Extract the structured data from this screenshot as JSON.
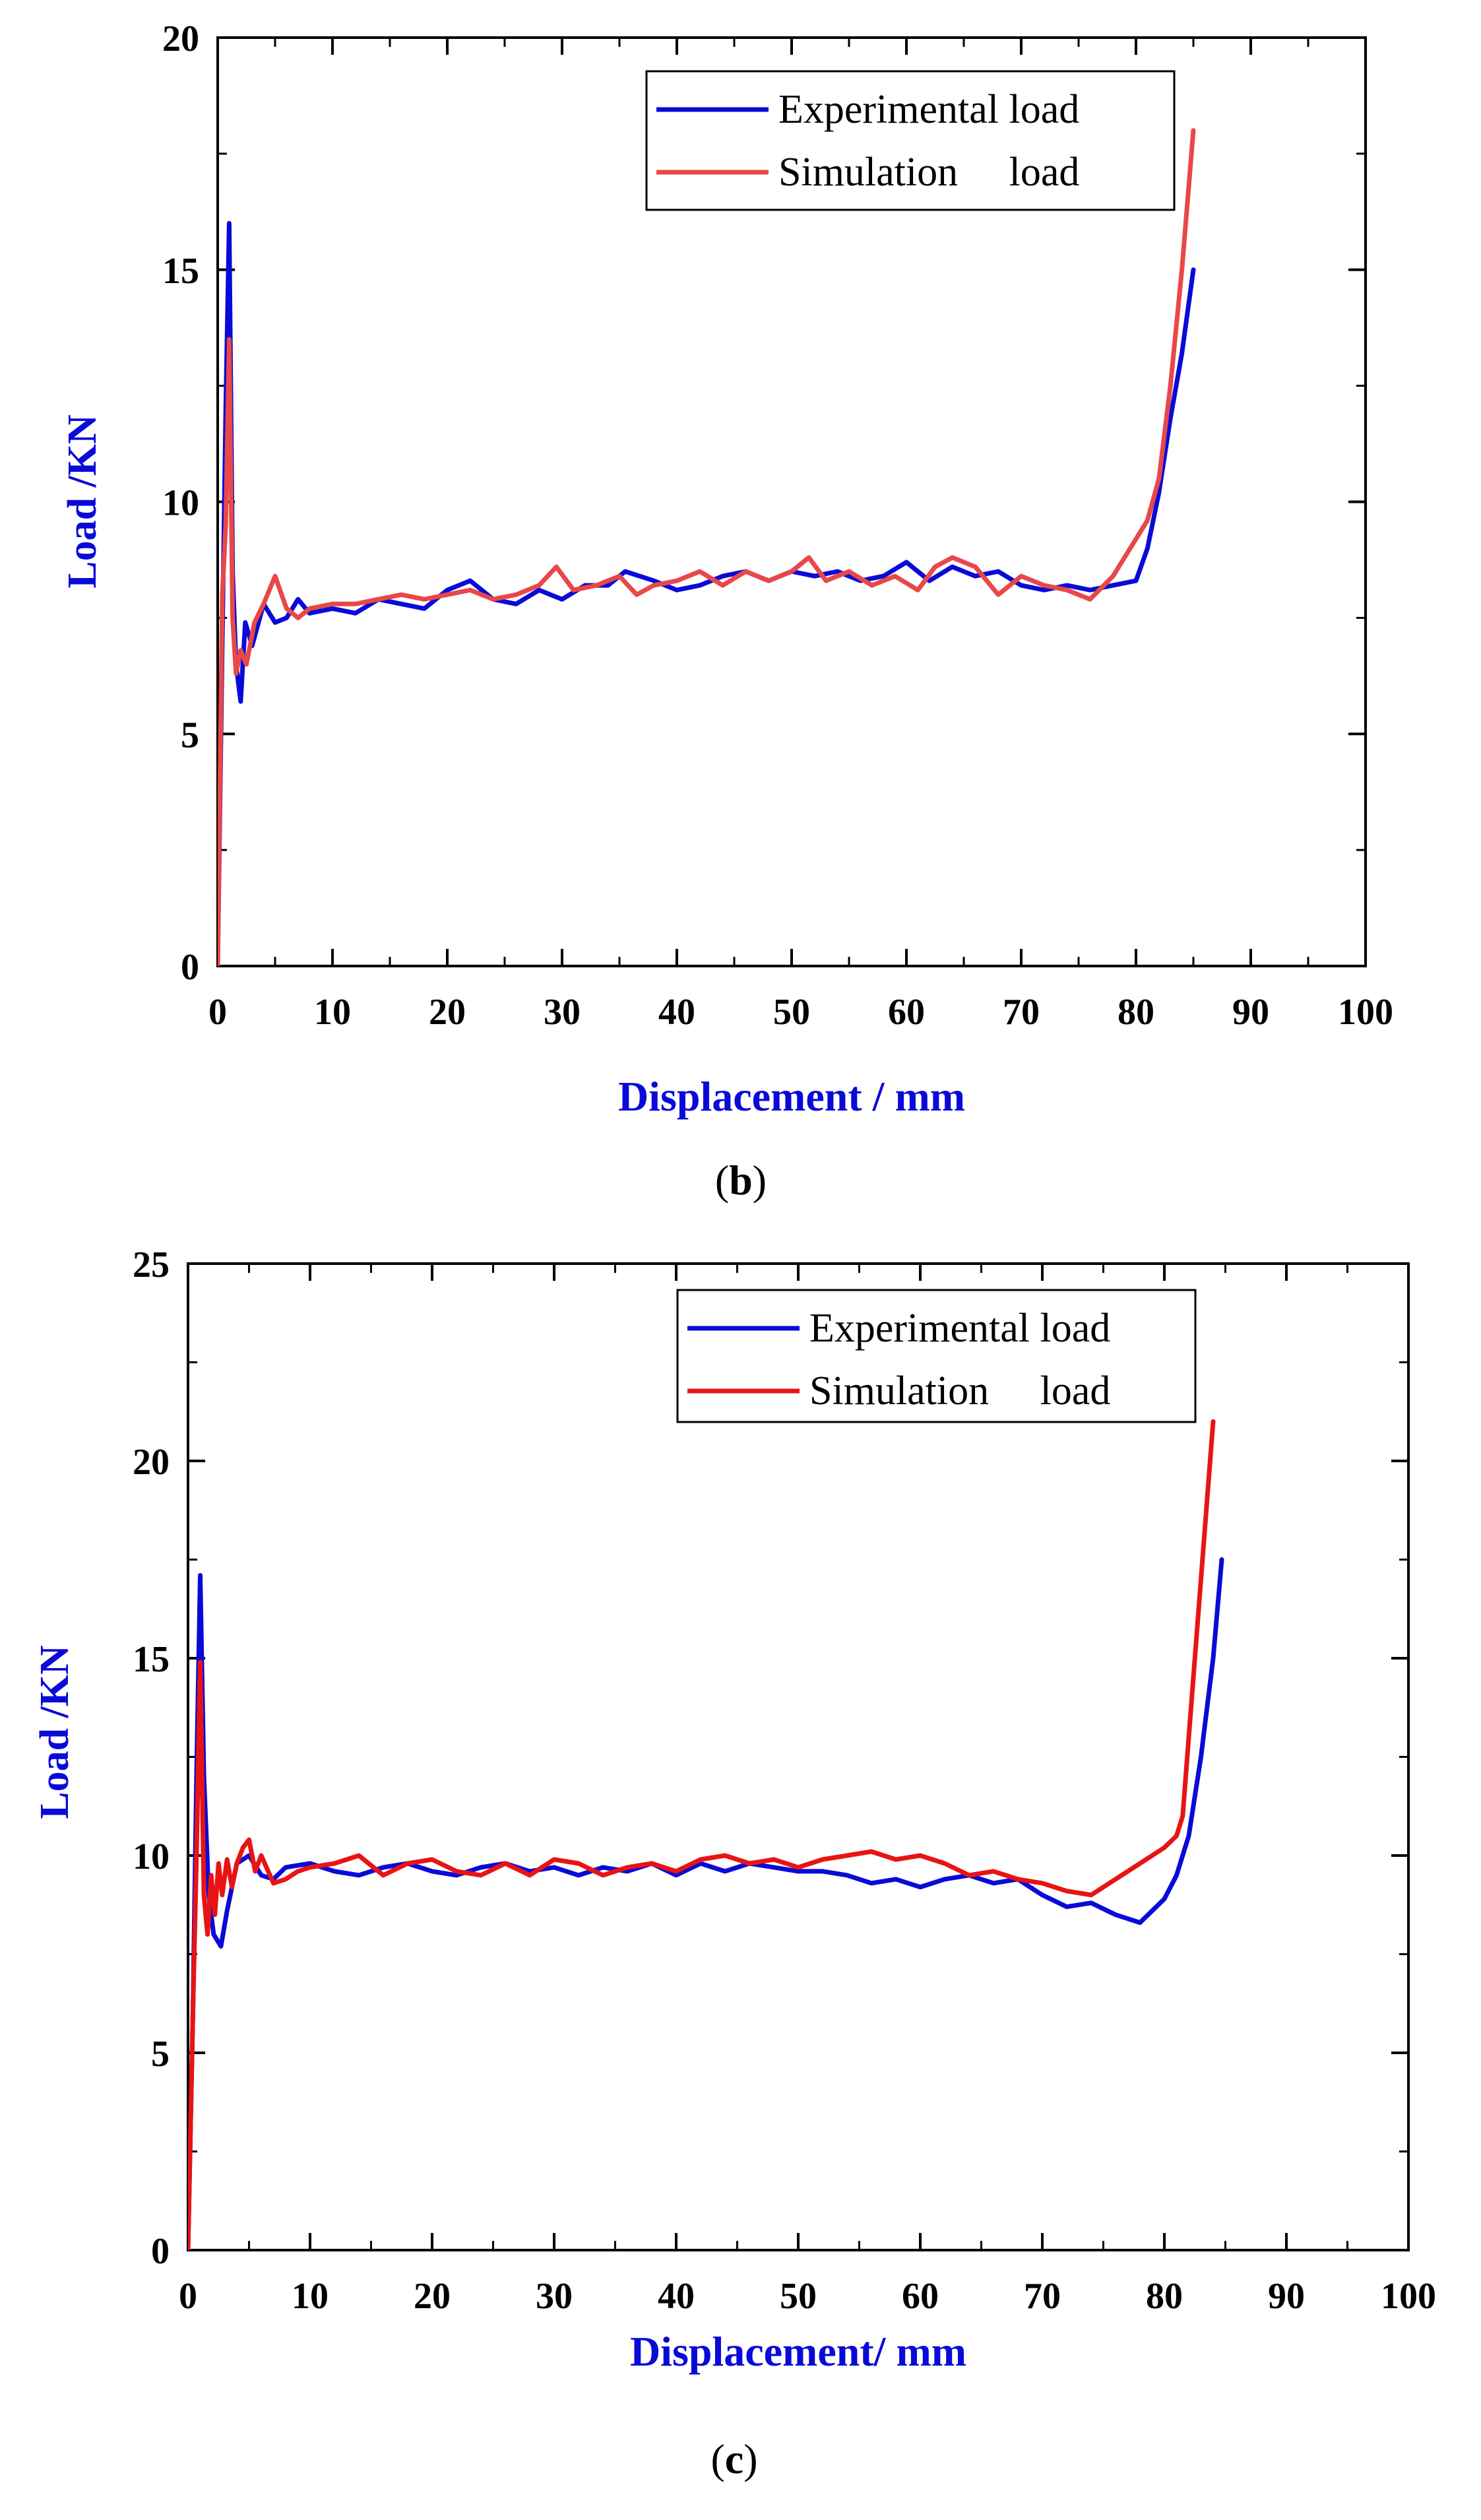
{
  "chart_data": [
    {
      "type": "line",
      "panel_label": "b",
      "xlabel": "Displacement / mm",
      "ylabel": "Load /KN",
      "xlim": [
        0,
        100
      ],
      "ylim": [
        0,
        20
      ],
      "xticks": [
        0,
        10,
        20,
        30,
        40,
        50,
        60,
        70,
        80,
        90,
        100
      ],
      "yticks": [
        0,
        5,
        10,
        15,
        20
      ],
      "legend_position": "top-right",
      "series": [
        {
          "name": "Experimental load",
          "color": "#0a0ad8",
          "x": [
            0,
            0.4,
            0.7,
            1.0,
            1.3,
            1.6,
            2.0,
            2.4,
            3.0,
            4.0,
            5.0,
            6.0,
            7.0,
            8.0,
            10,
            12,
            14,
            16,
            18,
            20,
            22,
            24,
            26,
            28,
            30,
            32,
            34,
            35.5,
            38,
            40,
            42,
            44,
            46,
            48,
            50,
            52,
            54,
            56,
            58,
            60,
            62,
            64,
            66,
            68,
            70,
            72,
            74,
            76,
            78,
            80,
            81,
            82,
            83,
            84,
            85
          ],
          "y": [
            0,
            7.0,
            12.0,
            16.0,
            8.5,
            6.5,
            5.7,
            7.4,
            6.9,
            7.8,
            7.4,
            7.5,
            7.9,
            7.6,
            7.7,
            7.6,
            7.9,
            7.8,
            7.7,
            8.1,
            8.3,
            7.9,
            7.8,
            8.1,
            7.9,
            8.2,
            8.2,
            8.5,
            8.3,
            8.1,
            8.2,
            8.4,
            8.5,
            8.3,
            8.5,
            8.4,
            8.5,
            8.3,
            8.4,
            8.7,
            8.3,
            8.6,
            8.4,
            8.5,
            8.2,
            8.1,
            8.2,
            8.1,
            8.2,
            8.3,
            9.0,
            10.2,
            11.8,
            13.2,
            15.0
          ]
        },
        {
          "name": "Simulation     load",
          "color": "#e84848",
          "x": [
            0,
            0.4,
            0.7,
            1.0,
            1.3,
            1.6,
            2.0,
            2.5,
            3.2,
            4.0,
            5.0,
            6.0,
            7.0,
            8.0,
            10,
            12,
            14,
            16,
            18,
            20,
            22,
            24,
            26,
            28,
            29.5,
            31,
            33,
            35,
            36.5,
            38,
            40,
            42,
            44,
            46,
            48,
            50,
            51.5,
            53,
            55,
            57,
            59,
            61,
            62.5,
            64,
            66,
            68,
            70,
            72,
            74,
            76,
            78,
            80,
            81,
            82,
            83,
            84,
            85
          ],
          "y": [
            0,
            8.0,
            9.5,
            13.5,
            7.5,
            6.3,
            6.8,
            6.5,
            7.4,
            7.8,
            8.4,
            7.7,
            7.5,
            7.7,
            7.8,
            7.8,
            7.9,
            8.0,
            7.9,
            8.0,
            8.1,
            7.9,
            8.0,
            8.2,
            8.6,
            8.1,
            8.2,
            8.4,
            8.0,
            8.2,
            8.3,
            8.5,
            8.2,
            8.5,
            8.3,
            8.5,
            8.8,
            8.3,
            8.5,
            8.2,
            8.4,
            8.1,
            8.6,
            8.8,
            8.6,
            8.0,
            8.4,
            8.2,
            8.1,
            7.9,
            8.4,
            9.2,
            9.6,
            10.5,
            12.5,
            15.0,
            18.0
          ]
        }
      ]
    },
    {
      "type": "line",
      "panel_label": "c",
      "xlabel": "Displacement/ mm",
      "ylabel": "Load /KN",
      "xlim": [
        0,
        100
      ],
      "ylim": [
        0,
        25
      ],
      "xticks": [
        0,
        10,
        20,
        30,
        40,
        50,
        60,
        70,
        80,
        90,
        100
      ],
      "yticks": [
        0,
        5,
        10,
        15,
        20,
        25
      ],
      "legend_position": "top-right",
      "series": [
        {
          "name": "Experimental load",
          "color": "#0a0ad8",
          "x": [
            0,
            0.4,
            0.7,
            1.0,
            1.3,
            1.7,
            2.1,
            2.7,
            3.2,
            4.0,
            5.0,
            6.0,
            7.0,
            8.0,
            10,
            12,
            14,
            16,
            18,
            20,
            22,
            24,
            26,
            28,
            30,
            32,
            34,
            36,
            38,
            40,
            42,
            44,
            46,
            48,
            50,
            52,
            54,
            56,
            58,
            60,
            62,
            64,
            66,
            68,
            70,
            72,
            74,
            76,
            77,
            78,
            79,
            80,
            81,
            82,
            83,
            84,
            84.7
          ],
          "y": [
            0,
            6.0,
            12.0,
            17.1,
            12.0,
            9.0,
            8.0,
            7.7,
            8.6,
            9.8,
            10.0,
            9.5,
            9.4,
            9.7,
            9.8,
            9.6,
            9.5,
            9.7,
            9.8,
            9.6,
            9.5,
            9.7,
            9.8,
            9.6,
            9.7,
            9.5,
            9.7,
            9.6,
            9.8,
            9.5,
            9.8,
            9.6,
            9.8,
            9.7,
            9.6,
            9.6,
            9.5,
            9.3,
            9.4,
            9.2,
            9.4,
            9.5,
            9.3,
            9.4,
            9.0,
            8.7,
            8.8,
            8.5,
            8.4,
            8.3,
            8.6,
            8.9,
            9.5,
            10.5,
            12.5,
            15.0,
            17.5
          ]
        },
        {
          "name": "Simulation     load",
          "color": "#e81414",
          "x": [
            0,
            0.4,
            0.7,
            1.0,
            1.3,
            1.6,
            1.9,
            2.2,
            2.5,
            2.8,
            3.2,
            3.6,
            4.0,
            4.5,
            5.0,
            5.5,
            6.0,
            7.0,
            8.0,
            9.0,
            10,
            12,
            14,
            16,
            18,
            20,
            22,
            24,
            26,
            28,
            30,
            32,
            34,
            36,
            38,
            40,
            42,
            44,
            46,
            48,
            50,
            52,
            54,
            56,
            58,
            60,
            62,
            64,
            66,
            68,
            70,
            72,
            74,
            76,
            78,
            80,
            81,
            81.5,
            82,
            83,
            84
          ],
          "y": [
            0,
            6.0,
            10.0,
            14.9,
            9.0,
            8.0,
            9.5,
            8.5,
            9.8,
            9.0,
            9.9,
            9.2,
            9.8,
            10.2,
            10.4,
            9.6,
            10.0,
            9.3,
            9.4,
            9.6,
            9.7,
            9.8,
            10.0,
            9.5,
            9.8,
            9.9,
            9.6,
            9.5,
            9.8,
            9.5,
            9.9,
            9.8,
            9.5,
            9.7,
            9.8,
            9.6,
            9.9,
            10.0,
            9.8,
            9.9,
            9.7,
            9.9,
            10.0,
            10.1,
            9.9,
            10.0,
            9.8,
            9.5,
            9.6,
            9.4,
            9.3,
            9.1,
            9.0,
            9.4,
            9.8,
            10.2,
            10.5,
            11.0,
            13.0,
            17.0,
            21.0
          ]
        }
      ]
    }
  ]
}
